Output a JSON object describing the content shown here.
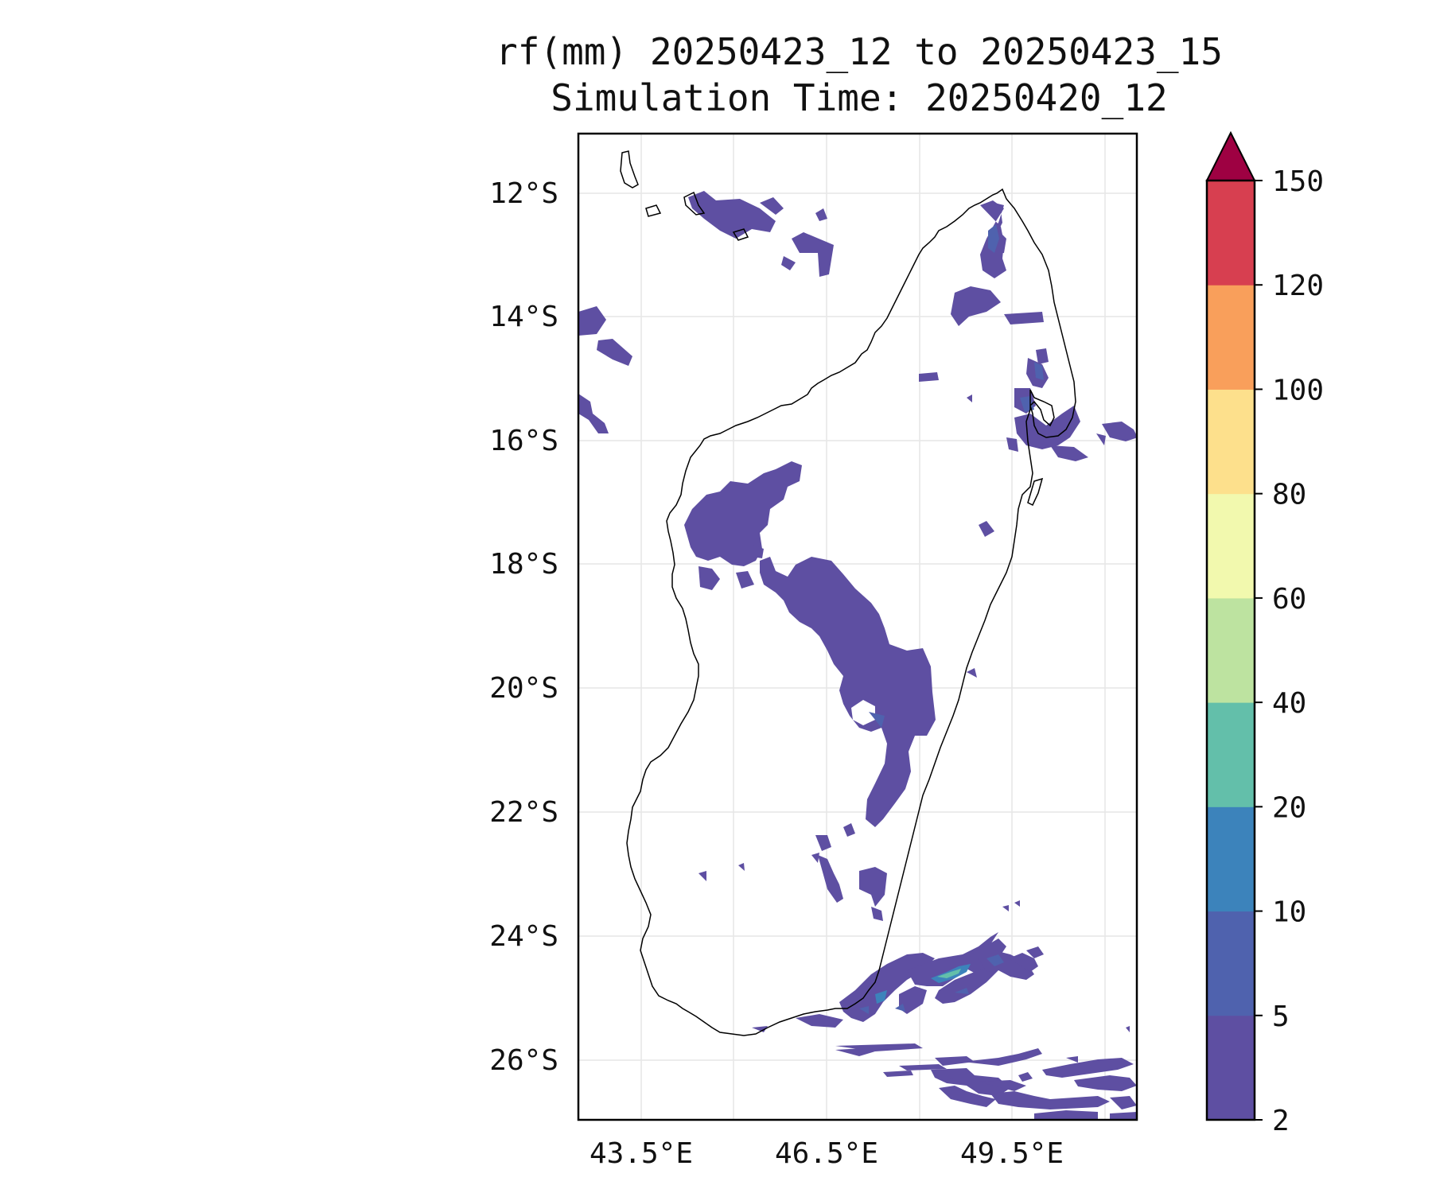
{
  "title_line1": "rf(mm) 20250423_12 to 20250423_15",
  "title_line2": "Simulation Time: 20250420_12",
  "lat_labels": [
    "12°S",
    "14°S",
    "16°S",
    "18°S",
    "20°S",
    "22°S",
    "24°S",
    "26°S"
  ],
  "lon_labels": [
    "43.5°E",
    "46.5°E",
    "49.5°E"
  ],
  "colorbar": {
    "levels": [
      "2",
      "5",
      "10",
      "20",
      "40",
      "60",
      "80",
      "100",
      "120",
      "150"
    ],
    "colors": [
      "#5e4fa2",
      "#4f62ae",
      "#3c83bb",
      "#63bfaa",
      "#bde3a0",
      "#f2f9ae",
      "#fde08c",
      "#f99f5b",
      "#d73f50",
      "#9e0142"
    ],
    "extend": "max"
  },
  "rain_areas": [
    {
      "name": "rain-northwest-sea",
      "color": "#5e4fa2"
    },
    {
      "name": "rain-west-coast",
      "color": "#5e4fa2"
    },
    {
      "name": "rain-central-highlands",
      "color": "#5e4fa2"
    },
    {
      "name": "rain-northeast",
      "color": "#5e4fa2"
    },
    {
      "name": "rain-southeast-sea",
      "color": "#5e4fa2"
    }
  ]
}
